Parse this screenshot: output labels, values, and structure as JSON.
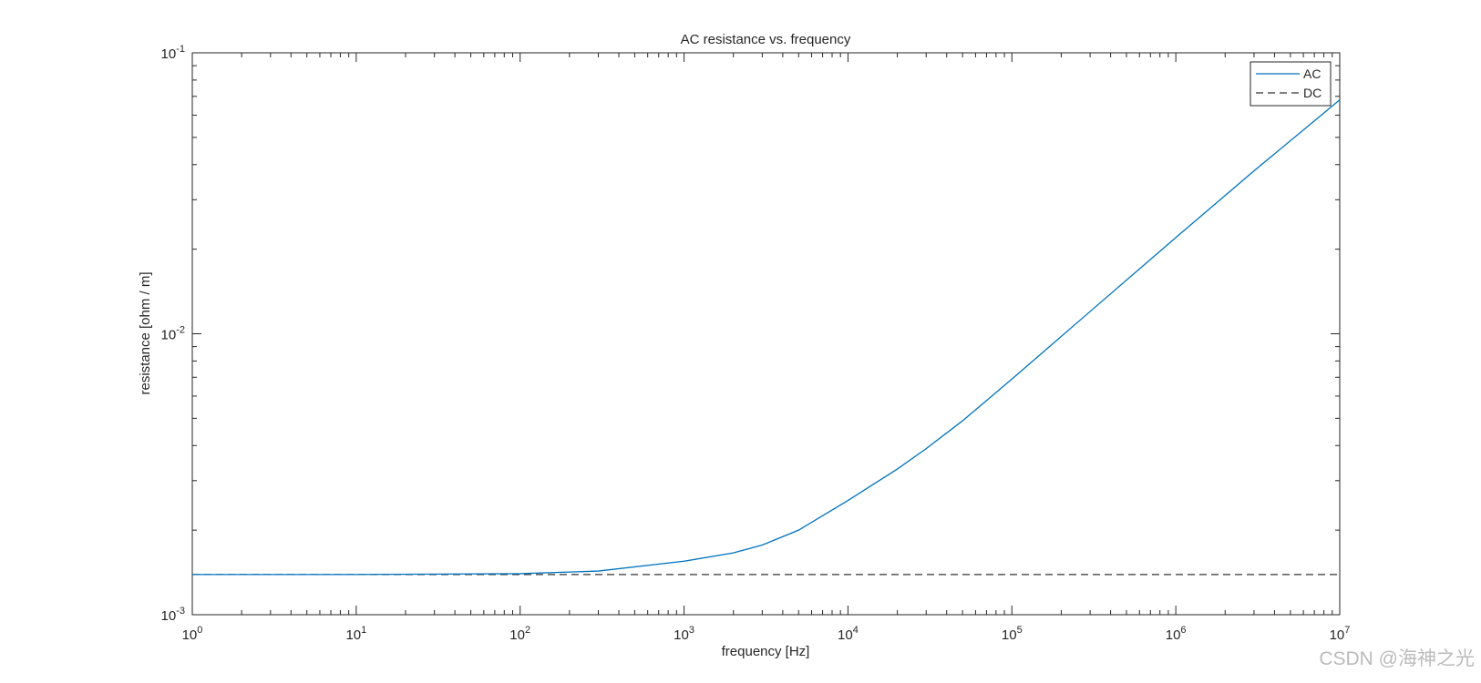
{
  "chart_data": {
    "type": "line",
    "title": "AC resistance vs. frequency",
    "xlabel": "frequency [Hz]",
    "ylabel": "resistance  [ohm / m]",
    "log_x": true,
    "log_y": true,
    "grid": false,
    "legend_position": "upper right",
    "x": [
      1,
      10,
      100,
      300,
      1000,
      2000,
      3000,
      5000,
      7000,
      10000,
      20000,
      30000,
      50000,
      100000,
      300000,
      1000000,
      3000000,
      10000000
    ],
    "series": [
      {
        "name": "AC",
        "color": "#0072bd",
        "dash": false,
        "values": [
          0.00139,
          0.00139,
          0.0014,
          0.00143,
          0.00155,
          0.00166,
          0.00177,
          0.002,
          0.00225,
          0.00255,
          0.0033,
          0.0039,
          0.0049,
          0.0069,
          0.012,
          0.022,
          0.038,
          0.068
        ]
      },
      {
        "name": "DC",
        "color": "#333333",
        "dash": true,
        "values": [
          0.00139,
          0.00139,
          0.00139,
          0.00139,
          0.00139,
          0.00139,
          0.00139,
          0.00139,
          0.00139,
          0.00139,
          0.00139,
          0.00139,
          0.00139,
          0.00139,
          0.00139,
          0.00139,
          0.00139,
          0.00139
        ]
      }
    ],
    "xlim": [
      1,
      10000000
    ],
    "xticks": [
      {
        "value": 1,
        "label": "10^0"
      },
      {
        "value": 10,
        "label": "10^1"
      },
      {
        "value": 100,
        "label": "10^2"
      },
      {
        "value": 1000,
        "label": "10^3"
      },
      {
        "value": 10000,
        "label": "10^4"
      },
      {
        "value": 100000,
        "label": "10^5"
      },
      {
        "value": 1000000,
        "label": "10^6"
      },
      {
        "value": 10000000,
        "label": "10^7"
      }
    ],
    "ylim": [
      0.001,
      0.1
    ],
    "yticks": [
      {
        "value": 0.001,
        "label": "10^-3"
      },
      {
        "value": 0.01,
        "label": "10^-2"
      },
      {
        "value": 0.1,
        "label": "10^-1"
      }
    ],
    "watermark": "CSDN @海神之光"
  }
}
